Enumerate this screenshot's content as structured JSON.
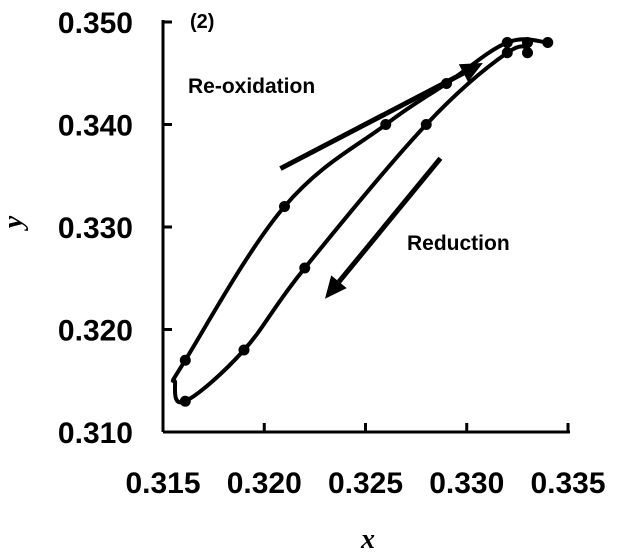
{
  "chart_data": {
    "type": "line",
    "panel_label": "(2)",
    "xlabel": "x",
    "ylabel": "y",
    "xlim": [
      0.315,
      0.335
    ],
    "ylim": [
      0.31,
      0.35
    ],
    "x_ticks": [
      "0.315",
      "0.320",
      "0.325",
      "0.330",
      "0.335"
    ],
    "y_ticks": [
      "0.310",
      "0.320",
      "0.330",
      "0.340",
      "0.350"
    ],
    "grid": false,
    "series": [
      {
        "path": [
          {
            "x": 0.3332,
            "y": 0.3472
          },
          {
            "x": 0.332,
            "y": 0.347
          },
          {
            "x": 0.328,
            "y": 0.34
          },
          {
            "x": 0.322,
            "y": 0.326
          },
          {
            "x": 0.319,
            "y": 0.318
          },
          {
            "x": 0.3161,
            "y": 0.313
          },
          {
            "x": 0.3156,
            "y": 0.3148
          },
          {
            "x": 0.3161,
            "y": 0.317
          },
          {
            "x": 0.321,
            "y": 0.332
          },
          {
            "x": 0.326,
            "y": 0.34
          },
          {
            "x": 0.329,
            "y": 0.344
          },
          {
            "x": 0.332,
            "y": 0.348
          },
          {
            "x": 0.334,
            "y": 0.348
          }
        ],
        "points": [
          {
            "x": 0.332,
            "y": 0.347
          },
          {
            "x": 0.328,
            "y": 0.34
          },
          {
            "x": 0.322,
            "y": 0.326
          },
          {
            "x": 0.319,
            "y": 0.318
          },
          {
            "x": 0.3161,
            "y": 0.313
          },
          {
            "x": 0.3161,
            "y": 0.317
          },
          {
            "x": 0.321,
            "y": 0.332
          },
          {
            "x": 0.326,
            "y": 0.34
          },
          {
            "x": 0.329,
            "y": 0.344
          },
          {
            "x": 0.332,
            "y": 0.348
          },
          {
            "x": 0.333,
            "y": 0.348
          },
          {
            "x": 0.334,
            "y": 0.348
          },
          {
            "x": 0.333,
            "y": 0.347
          }
        ]
      }
    ],
    "annotations": [
      {
        "text": "Re-oxidation",
        "arrow_from": {
          "x": 0.3208,
          "y": 0.3357
        },
        "arrow_to": {
          "x": 0.3308,
          "y": 0.346
        }
      },
      {
        "text": "Reduction",
        "arrow_from": {
          "x": 0.3287,
          "y": 0.3367
        },
        "arrow_to": {
          "x": 0.323,
          "y": 0.323
        }
      }
    ],
    "line_color": "#000000"
  }
}
